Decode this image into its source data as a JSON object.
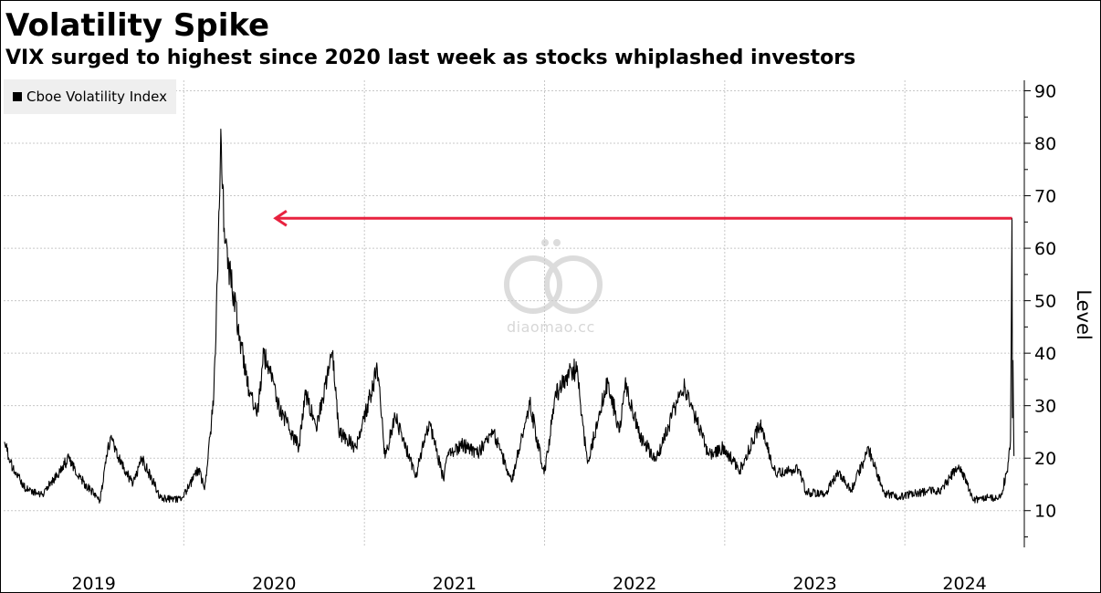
{
  "title": "Volatility Spike",
  "subtitle": "VIX surged to highest since 2020 last week as stocks whiplashed investors",
  "watermark": "diaomao.cc",
  "colors": {
    "series": "#000000",
    "arrow": "#e8223f",
    "grid": "#c8c8c8",
    "legend_bg": "#efefef"
  },
  "chart_data": {
    "type": "line",
    "title": "Volatility Spike",
    "subtitle": "VIX surged to highest since 2020 last week as stocks whiplashed investors",
    "xlabel": "",
    "ylabel": "Level",
    "y_axis_position": "right",
    "ylim": [
      3,
      92
    ],
    "yticks": [
      10,
      20,
      30,
      40,
      50,
      60,
      70,
      80,
      90
    ],
    "xlim": [
      "2019-01-01",
      "2024-08-30"
    ],
    "xtick_labels": [
      "2019",
      "2020",
      "2021",
      "2022",
      "2023",
      "2024"
    ],
    "grid": true,
    "legend_position": "top-left",
    "series": [
      {
        "name": "Cboe Volatility Index",
        "color": "#000000",
        "points": [
          [
            "2019-01-02",
            23
          ],
          [
            "2019-01-20",
            18
          ],
          [
            "2019-02-15",
            14
          ],
          [
            "2019-03-20",
            13
          ],
          [
            "2019-05-13",
            20
          ],
          [
            "2019-06-15",
            15
          ],
          [
            "2019-07-15",
            12
          ],
          [
            "2019-08-05",
            24
          ],
          [
            "2019-08-28",
            19
          ],
          [
            "2019-09-20",
            15
          ],
          [
            "2019-10-08",
            20
          ],
          [
            "2019-11-15",
            12.5
          ],
          [
            "2019-12-27",
            12
          ],
          [
            "2020-01-31",
            18
          ],
          [
            "2020-02-12",
            14
          ],
          [
            "2020-02-24",
            25
          ],
          [
            "2020-03-02",
            33
          ],
          [
            "2020-03-09",
            54
          ],
          [
            "2020-03-16",
            82.7
          ],
          [
            "2020-03-24",
            61
          ],
          [
            "2020-04-01",
            57
          ],
          [
            "2020-04-20",
            45
          ],
          [
            "2020-05-12",
            33
          ],
          [
            "2020-05-28",
            28
          ],
          [
            "2020-06-11",
            40
          ],
          [
            "2020-07-15",
            29
          ],
          [
            "2020-08-21",
            22
          ],
          [
            "2020-09-03",
            33
          ],
          [
            "2020-09-25",
            26
          ],
          [
            "2020-10-28",
            40
          ],
          [
            "2020-11-10",
            25
          ],
          [
            "2020-12-15",
            22
          ],
          [
            "2021-01-27",
            37
          ],
          [
            "2021-02-12",
            20
          ],
          [
            "2021-03-04",
            28
          ],
          [
            "2021-04-15",
            16.5
          ],
          [
            "2021-05-12",
            27
          ],
          [
            "2021-06-10",
            16
          ],
          [
            "2021-06-18",
            20.5
          ],
          [
            "2021-07-19",
            22.5
          ],
          [
            "2021-08-19",
            21
          ],
          [
            "2021-09-20",
            25
          ],
          [
            "2021-10-26",
            15.5
          ],
          [
            "2021-11-26",
            28
          ],
          [
            "2021-12-01",
            31
          ],
          [
            "2021-12-31",
            17
          ],
          [
            "2022-01-24",
            32
          ],
          [
            "2022-02-24",
            37
          ],
          [
            "2022-03-07",
            36.5
          ],
          [
            "2022-03-29",
            19
          ],
          [
            "2022-05-09",
            34.8
          ],
          [
            "2022-06-02",
            25
          ],
          [
            "2022-06-13",
            34
          ],
          [
            "2022-07-15",
            24
          ],
          [
            "2022-08-15",
            19.5
          ],
          [
            "2022-09-30",
            31.6
          ],
          [
            "2022-10-12",
            33.6
          ],
          [
            "2022-11-30",
            20.5
          ],
          [
            "2022-12-28",
            22
          ],
          [
            "2023-02-01",
            17.8
          ],
          [
            "2023-03-13",
            26.5
          ],
          [
            "2023-04-14",
            17
          ],
          [
            "2023-05-31",
            17.9
          ],
          [
            "2023-06-15",
            13.5
          ],
          [
            "2023-07-24",
            13.2
          ],
          [
            "2023-08-18",
            17.3
          ],
          [
            "2023-09-15",
            14
          ],
          [
            "2023-10-20",
            21.7
          ],
          [
            "2023-11-20",
            13.4
          ],
          [
            "2023-12-20",
            12.5
          ],
          [
            "2024-01-15",
            13.2
          ],
          [
            "2024-03-15",
            14
          ],
          [
            "2024-04-19",
            18.7
          ],
          [
            "2024-05-20",
            12
          ],
          [
            "2024-06-20",
            12.5
          ],
          [
            "2024-07-12",
            12.4
          ],
          [
            "2024-07-26",
            17.5
          ],
          [
            "2024-08-02",
            23.4
          ],
          [
            "2024-08-05",
            65.7
          ],
          [
            "2024-08-06",
            27.7
          ],
          [
            "2024-08-07",
            38.6
          ],
          [
            "2024-08-09",
            20.4
          ]
        ]
      }
    ],
    "annotations": [
      {
        "type": "arrow",
        "from": [
          "2024-08-05",
          65.7
        ],
        "to": [
          "2020-03-16",
          65.7
        ]
      }
    ]
  }
}
